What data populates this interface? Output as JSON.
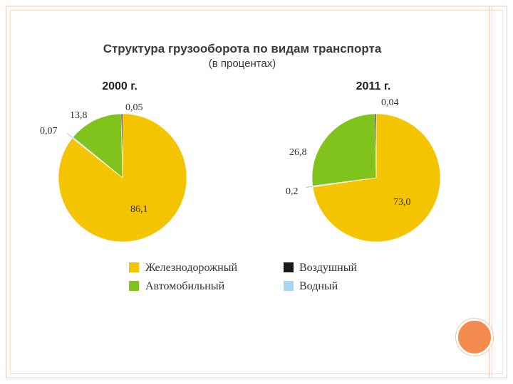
{
  "chart_data": {
    "type": "pie",
    "title": "Структура грузооборота по видам транспорта",
    "subtitle": "(в процентах)",
    "categories": [
      "Железнодорожный",
      "Автомобильный",
      "Воздушный",
      "Водный"
    ],
    "colors": [
      "#f5c400",
      "#7fc31c",
      "#1a1a1a",
      "#a9d4f2"
    ],
    "legend_placement": "bottom",
    "charts": [
      {
        "year_label": "2000 г.",
        "values": [
          86.1,
          13.8,
          0.05,
          0.07
        ],
        "value_labels": [
          "86,1",
          "13,8",
          "0,05",
          "0,07"
        ]
      },
      {
        "year_label": "2011 г.",
        "values": [
          73.0,
          26.8,
          0.04,
          0.2
        ],
        "value_labels": [
          "73,0",
          "26,8",
          "0,04",
          "0,2"
        ]
      }
    ]
  }
}
